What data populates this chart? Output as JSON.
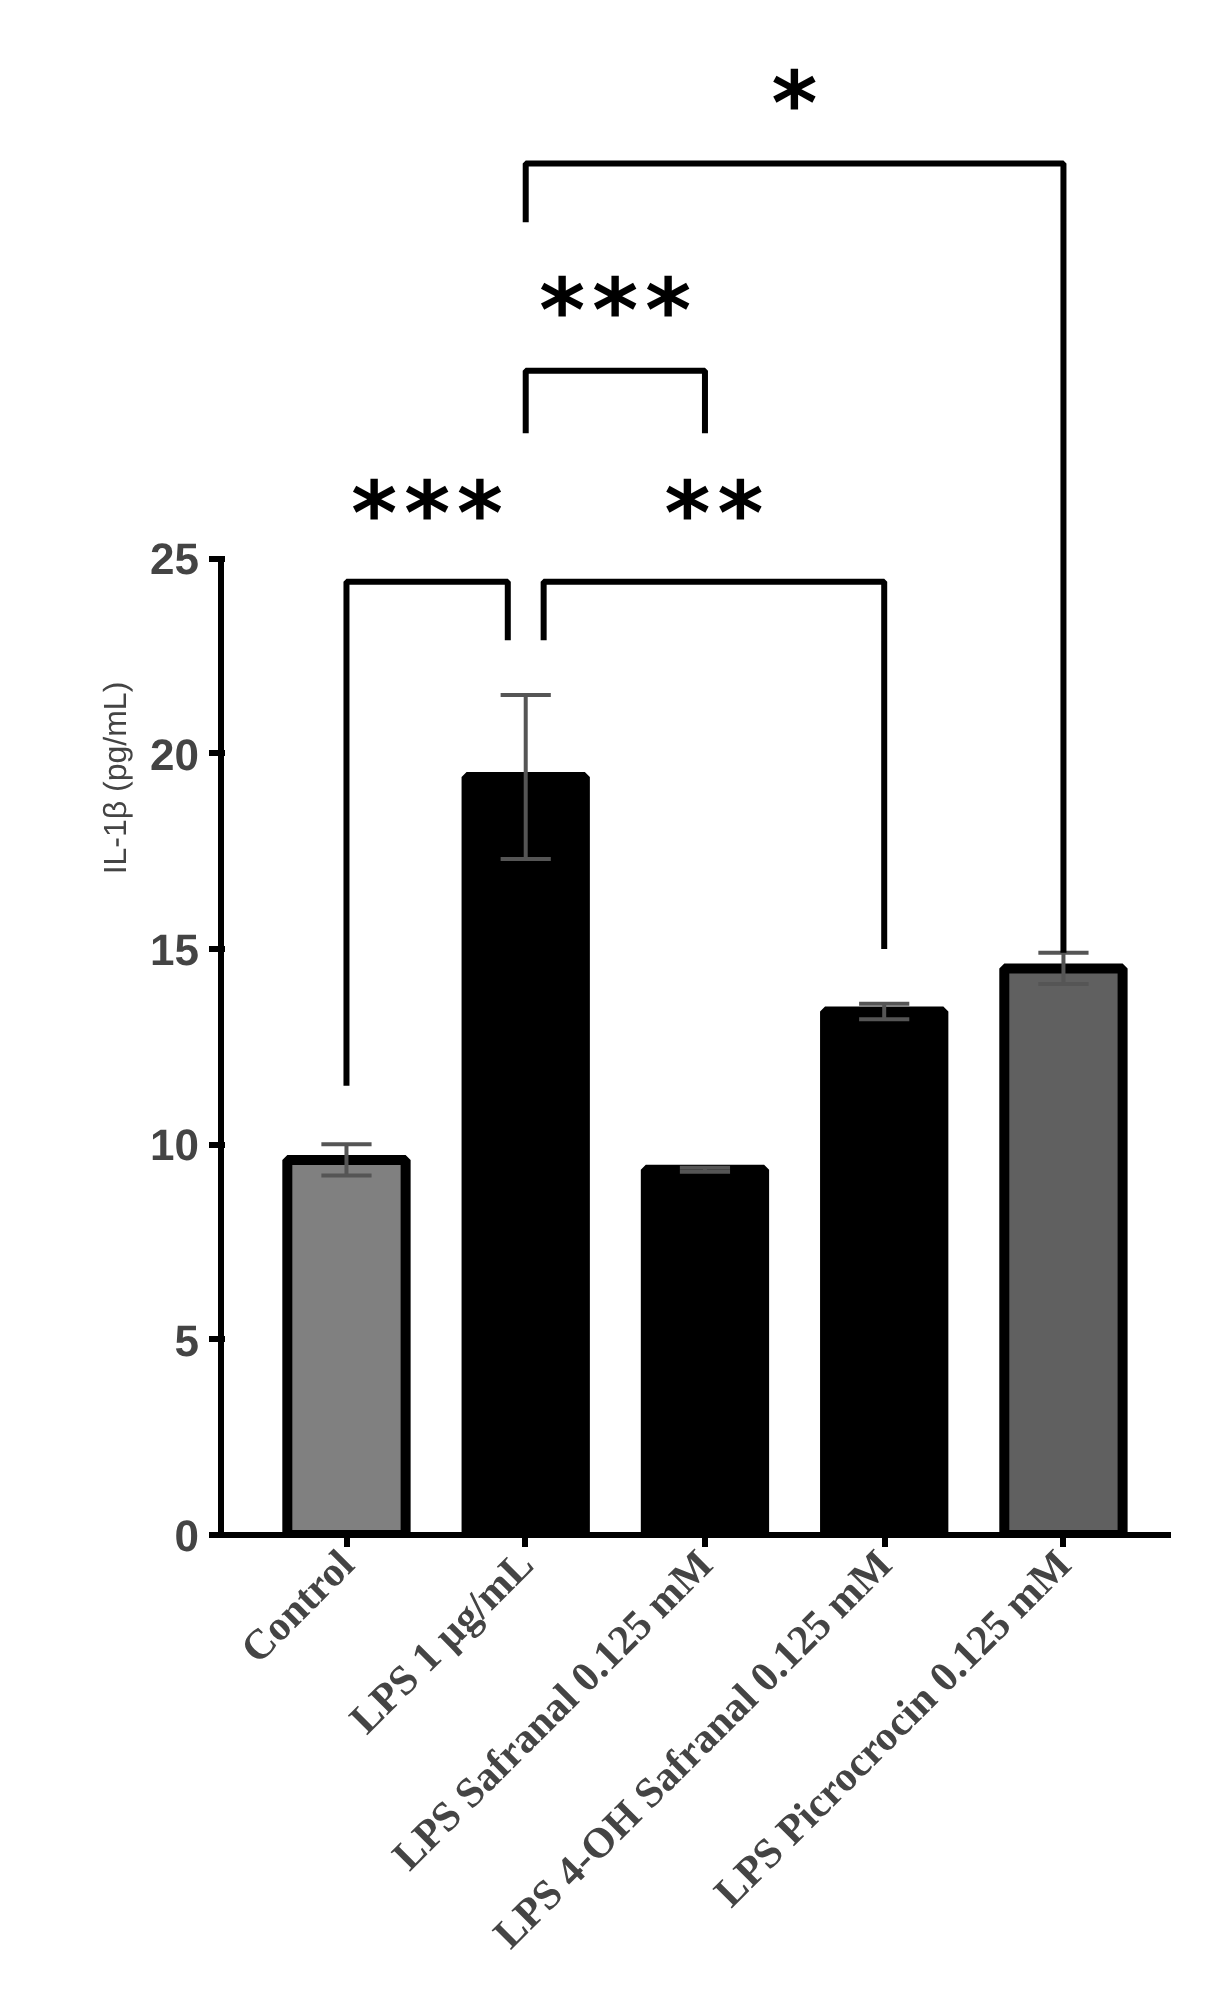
{
  "chart_data": {
    "type": "bar",
    "ylabel": "IL-1β (pg/mL)",
    "categories": [
      "Control",
      "LPS 1 µg/mL",
      "LPS Safranal 0.125 mM",
      "LPS 4-OH Safranal 0.125 mM",
      "LPS Picrocrocin 0.125 mM"
    ],
    "values": [
      9.6,
      19.4,
      9.35,
      13.4,
      14.5
    ],
    "errors": [
      0.4,
      2.1,
      0.05,
      0.2,
      0.4
    ],
    "colors": [
      "#808080",
      "#000000",
      "#000000",
      "#000000",
      "#606060"
    ],
    "ylim": [
      0,
      25
    ],
    "yticks": [
      0,
      5,
      10,
      15,
      20,
      25
    ],
    "annotations": [
      "***",
      "***",
      "**",
      "*"
    ]
  }
}
